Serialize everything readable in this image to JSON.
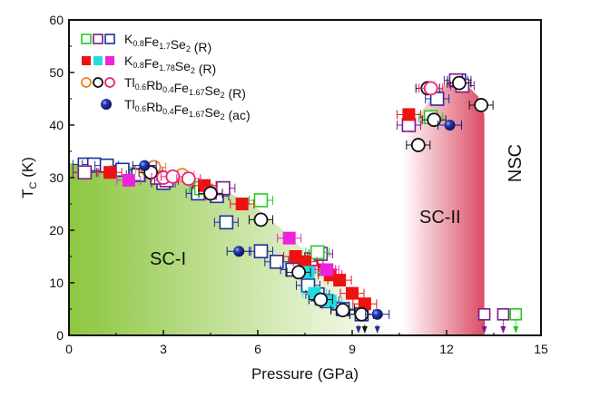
{
  "chart_data": {
    "type": "scatter",
    "title": "",
    "xlabel": "Pressure (GPa)",
    "ylabel": {
      "main": "T",
      "sub": "C",
      "unit": " (K)"
    },
    "xlim": [
      0,
      15
    ],
    "ylim": [
      0,
      60
    ],
    "xticks": [
      0,
      3,
      6,
      9,
      12,
      15
    ],
    "yticks": [
      0,
      10,
      20,
      30,
      40,
      50,
      60
    ],
    "grid": false,
    "legend_position": "top-left",
    "regions": [
      {
        "name": "SC-I",
        "label": "SC-I",
        "color_from": "#8dc63f",
        "color_to": "#ffffff",
        "boundary": [
          [
            0,
            32.7
          ],
          [
            1.5,
            32.5
          ],
          [
            3,
            31
          ],
          [
            4,
            29.5
          ],
          [
            5,
            27.5
          ],
          [
            6,
            24
          ],
          [
            7,
            19
          ],
          [
            8,
            13
          ],
          [
            9,
            7
          ],
          [
            10,
            2
          ],
          [
            10.5,
            0
          ]
        ]
      },
      {
        "name": "SC-II",
        "label": "SC-II",
        "color_from": "#ffffff",
        "color_to": "#dc4c64",
        "boundary": [
          [
            10.6,
            0
          ],
          [
            10.6,
            36
          ],
          [
            11,
            41
          ],
          [
            11.5,
            45
          ],
          [
            12,
            48
          ],
          [
            12.5,
            48.5
          ],
          [
            13,
            45.5
          ],
          [
            13.2,
            42
          ],
          [
            13.2,
            0
          ]
        ]
      },
      {
        "name": "NSC",
        "label": "NSC"
      }
    ],
    "legend": [
      {
        "label_parts": [
          [
            "K",
            ""
          ],
          [
            "0.8",
            "sub"
          ],
          [
            "Fe",
            ""
          ],
          [
            "1.7",
            "sub"
          ],
          [
            "Se",
            ""
          ],
          [
            "2",
            "sub"
          ],
          [
            " (R)",
            ""
          ]
        ],
        "markers": [
          {
            "shape": "square-open",
            "color": "#22cc22"
          },
          {
            "shape": "square-open",
            "color": "#7a1a8c"
          },
          {
            "shape": "square-open",
            "color": "#1f2f9a"
          }
        ]
      },
      {
        "label_parts": [
          [
            "K",
            ""
          ],
          [
            "0.8",
            "sub"
          ],
          [
            "Fe",
            ""
          ],
          [
            "1.78",
            "sub"
          ],
          [
            "Se",
            ""
          ],
          [
            "2",
            "sub"
          ],
          [
            " (R)",
            ""
          ]
        ],
        "markers": [
          {
            "shape": "square-filled",
            "color": "#ee1111"
          },
          {
            "shape": "square-filled",
            "color": "#22dddd"
          },
          {
            "shape": "square-filled",
            "color": "#ee22dd"
          }
        ]
      },
      {
        "label_parts": [
          [
            "Tl",
            ""
          ],
          [
            "0.6",
            "sub"
          ],
          [
            "Rb",
            ""
          ],
          [
            "0.4",
            "sub"
          ],
          [
            "Fe",
            ""
          ],
          [
            "1.67",
            "sub"
          ],
          [
            "Se",
            ""
          ],
          [
            "2",
            "sub"
          ],
          [
            " (R)",
            ""
          ]
        ],
        "markers": [
          {
            "shape": "circle-open",
            "color": "#f08020"
          },
          {
            "shape": "circle-open",
            "color": "#111111"
          },
          {
            "shape": "circle-open",
            "color": "#ee2277"
          }
        ]
      },
      {
        "label_parts": [
          [
            "Tl",
            ""
          ],
          [
            "0.6",
            "sub"
          ],
          [
            "Rb",
            ""
          ],
          [
            "0.4",
            "sub"
          ],
          [
            "Fe",
            ""
          ],
          [
            "1.67",
            "sub"
          ],
          [
            "Se",
            ""
          ],
          [
            "2",
            "sub"
          ],
          [
            " (ac)",
            ""
          ]
        ],
        "markers": [
          {
            "shape": "sphere",
            "color": "#13208a"
          }
        ]
      }
    ],
    "series": [
      {
        "name": "K0.8Fe1.7Se2 (R) blue",
        "shape": "square-open",
        "color": "#1f2f9a",
        "points": [
          [
            0.5,
            32.5
          ],
          [
            0.8,
            32.5
          ],
          [
            1.2,
            32.3
          ],
          [
            1.7,
            31.5
          ],
          [
            2.2,
            30.5
          ],
          [
            3,
            29
          ],
          [
            4.1,
            27
          ],
          [
            4.7,
            26.5
          ],
          [
            5,
            21.5
          ],
          [
            6.1,
            16
          ],
          [
            6.6,
            14
          ],
          [
            7.1,
            12.5
          ],
          [
            7.6,
            9.5
          ],
          [
            7.9,
            7.8
          ],
          [
            8.2,
            6.5
          ],
          [
            8.7,
            5
          ],
          [
            9.3,
            4
          ],
          [
            11.7,
            45
          ],
          [
            12.4,
            48.5
          ]
        ]
      },
      {
        "name": "K0.8Fe1.7Se2 (R) purple",
        "shape": "square-open",
        "color": "#7a1a8c",
        "points": [
          [
            0.5,
            31
          ],
          [
            2.8,
            30
          ],
          [
            3.1,
            29.5
          ],
          [
            4.9,
            28
          ],
          [
            7.7,
            14.5
          ],
          [
            8,
            15.5
          ],
          [
            10.8,
            40
          ],
          [
            12.3,
            48.5
          ],
          [
            12.5,
            47.5
          ]
        ]
      },
      {
        "name": "K0.8Fe1.7Se2 (R) green",
        "shape": "square-open",
        "color": "#22cc22",
        "points": [
          [
            4.2,
            28
          ],
          [
            6.1,
            25.7
          ],
          [
            7.9,
            15.8
          ],
          [
            11.5,
            41.5
          ]
        ]
      },
      {
        "name": "K0.8Fe1.78Se2 (R) red",
        "shape": "square-filled",
        "color": "#ee1111",
        "points": [
          [
            1.3,
            31
          ],
          [
            4.3,
            28.5
          ],
          [
            5.5,
            25
          ],
          [
            7.2,
            15
          ],
          [
            7.5,
            14
          ],
          [
            8.1,
            12.5
          ],
          [
            8.3,
            11.5
          ],
          [
            8.6,
            10.5
          ],
          [
            9,
            8
          ],
          [
            9.4,
            6
          ],
          [
            10.8,
            42
          ]
        ]
      },
      {
        "name": "K0.8Fe1.78Se2 (R) cyan",
        "shape": "square-filled",
        "color": "#22dddd",
        "points": [
          [
            7.6,
            12
          ],
          [
            7.8,
            8
          ],
          [
            8.3,
            6.5
          ]
        ]
      },
      {
        "name": "K0.8Fe1.78Se2 (R) magenta",
        "shape": "square-filled",
        "color": "#ee22dd",
        "points": [
          [
            1.9,
            29.5
          ],
          [
            4.5,
            27
          ],
          [
            7,
            18.5
          ],
          [
            8.2,
            12.5
          ]
        ]
      },
      {
        "name": "Tl0.6Rb0.4Fe1.67Se2 (R) orange",
        "shape": "circle-open",
        "color": "#f08020",
        "points": [
          [
            2.5,
            31.5
          ],
          [
            2.7,
            32
          ],
          [
            3.6,
            30.5
          ]
        ]
      },
      {
        "name": "Tl0.6Rb0.4Fe1.67Se2 (R) black",
        "shape": "circle-open",
        "color": "#111111",
        "points": [
          [
            2.6,
            31
          ],
          [
            4.5,
            27
          ],
          [
            6.1,
            22
          ],
          [
            7.3,
            12
          ],
          [
            8,
            6.8
          ],
          [
            8.7,
            4.8
          ],
          [
            9.3,
            4
          ],
          [
            11.1,
            36.2
          ],
          [
            11.4,
            47
          ],
          [
            11.6,
            41
          ],
          [
            12.4,
            48
          ],
          [
            13.1,
            43.8
          ]
        ]
      },
      {
        "name": "Tl0.6Rb0.4Fe1.67Se2 (R) pink",
        "shape": "circle-open",
        "color": "#ee2277",
        "points": [
          [
            3,
            30
          ],
          [
            3.3,
            30.2
          ],
          [
            3.8,
            29.8
          ],
          [
            11.5,
            47
          ]
        ]
      },
      {
        "name": "Tl0.6Rb0.4Fe1.67Se2 (ac)",
        "shape": "sphere",
        "color": "#13208a",
        "points": [
          [
            2.4,
            32.3
          ],
          [
            5.4,
            16
          ],
          [
            9.8,
            4
          ],
          [
            12.1,
            40
          ]
        ]
      }
    ],
    "arrows": [
      {
        "x": 9.2,
        "color": "#1f2f9a"
      },
      {
        "x": 9.4,
        "color": "#111111"
      },
      {
        "x": 9.8,
        "color": "#1f2f9a"
      },
      {
        "x": 13.2,
        "color": "#7a1a8c",
        "marker": "square-open",
        "marker_y": 4
      },
      {
        "x": 13.8,
        "color": "#7a1a8c",
        "marker": "square-open",
        "marker_y": 4
      },
      {
        "x": 14.2,
        "color": "#22cc22",
        "marker": "square-open",
        "marker_y": 4
      }
    ]
  }
}
